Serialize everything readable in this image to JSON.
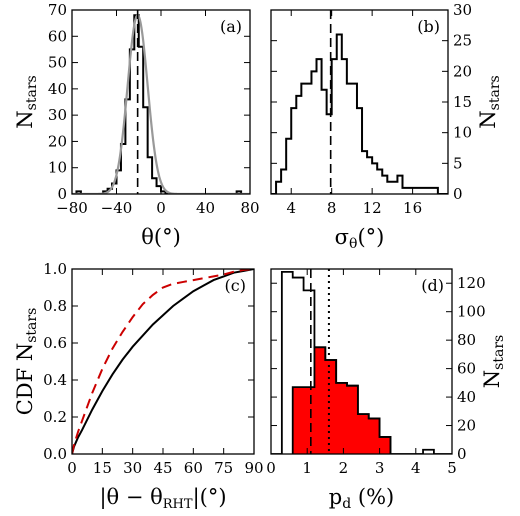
{
  "chart_data": [
    {
      "panel": "(a)",
      "type": "histogram",
      "xlabel": "θ(°)",
      "ylabel": "N_stars",
      "ylabel_side": "left",
      "xlim": [
        -80,
        80
      ],
      "ylim": [
        0,
        70
      ],
      "xticks": [
        -80,
        -40,
        0,
        40,
        80
      ],
      "yticks": [
        0,
        10,
        20,
        30,
        40,
        50,
        60,
        70
      ],
      "bin_edges": [
        -76,
        -72,
        -68,
        -64,
        -60,
        -56,
        -52,
        -48,
        -44,
        -40,
        -36,
        -32,
        -28,
        -24,
        -20,
        -16,
        -12,
        -8,
        -4,
        0,
        4,
        8,
        12,
        16,
        20,
        24,
        28,
        32,
        36,
        40,
        44,
        48,
        52,
        56,
        60,
        64,
        68,
        72,
        76
      ],
      "counts": [
        1,
        0,
        0,
        0,
        0,
        0,
        1,
        2,
        4,
        9,
        19,
        36,
        55,
        68,
        56,
        33,
        14,
        6,
        3,
        1,
        0,
        0,
        0,
        0,
        0,
        0,
        0,
        0,
        0,
        0,
        0,
        0,
        0,
        0,
        0,
        0,
        1,
        0
      ],
      "fit": {
        "type": "gaussian",
        "mean": -21,
        "sigma": 9,
        "amplitude": 68,
        "color": "#999999"
      },
      "median_line_x": -21
    },
    {
      "panel": "(b)",
      "type": "histogram",
      "xlabel": "σθ(°)",
      "ylabel": "N_stars",
      "ylabel_side": "right",
      "xlim": [
        2,
        19.5
      ],
      "ylim": [
        0,
        30
      ],
      "xticks": [
        4,
        8,
        12,
        16
      ],
      "yticks": [
        0,
        5,
        10,
        15,
        20,
        25,
        30
      ],
      "bin_edges": [
        2.0,
        2.5,
        3.0,
        3.5,
        4.0,
        4.5,
        5.0,
        5.5,
        6.0,
        6.5,
        7.0,
        7.5,
        8.0,
        8.5,
        9.0,
        9.5,
        10.0,
        10.5,
        11.0,
        11.5,
        12.0,
        12.5,
        13.0,
        13.5,
        14.0,
        14.5,
        15.0,
        15.5,
        16.0,
        16.5,
        17.0,
        17.5,
        18.0,
        18.5,
        19.0,
        19.5
      ],
      "counts": [
        0,
        2,
        4,
        9,
        14,
        16,
        18,
        18,
        20,
        22,
        17,
        13,
        22,
        26,
        22,
        18,
        18,
        14,
        7,
        6,
        5,
        4,
        3,
        2,
        2,
        3,
        1,
        1,
        1,
        1,
        1,
        1,
        1,
        0,
        0
      ],
      "median_line_x": 7.9
    },
    {
      "panel": "(c)",
      "type": "line",
      "xlabel": "|θ − θRHT|(°)",
      "ylabel": "CDF N_stars",
      "ylabel_side": "left",
      "xlim": [
        0,
        90
      ],
      "ylim": [
        0,
        1.0
      ],
      "xticks": [
        0,
        15,
        30,
        45,
        60,
        75,
        90
      ],
      "yticks": [
        0.0,
        0.2,
        0.4,
        0.6,
        0.8,
        1.0
      ],
      "series": [
        {
          "style": "solid",
          "color": "#000000",
          "x": [
            0,
            1,
            3,
            5,
            10,
            15,
            20,
            25,
            30,
            35,
            40,
            45,
            50,
            55,
            60,
            65,
            70,
            75,
            80,
            85,
            90
          ],
          "y": [
            0.0,
            0.04,
            0.09,
            0.13,
            0.24,
            0.34,
            0.43,
            0.51,
            0.58,
            0.64,
            0.7,
            0.75,
            0.8,
            0.84,
            0.88,
            0.91,
            0.94,
            0.96,
            0.98,
            0.99,
            1.0
          ]
        },
        {
          "style": "dashed",
          "color": "#cc0000",
          "x": [
            0,
            1,
            3,
            5,
            10,
            15,
            20,
            25,
            30,
            35,
            40,
            45,
            50,
            55,
            60,
            65,
            70,
            75,
            80,
            85,
            90
          ],
          "y": [
            0.0,
            0.05,
            0.12,
            0.18,
            0.33,
            0.46,
            0.57,
            0.66,
            0.74,
            0.81,
            0.86,
            0.9,
            0.92,
            0.93,
            0.94,
            0.95,
            0.96,
            0.97,
            0.985,
            0.995,
            1.0
          ]
        }
      ]
    },
    {
      "panel": "(d)",
      "type": "histogram",
      "xlabel": "pd (%)",
      "ylabel": "N_stars",
      "ylabel_side": "right",
      "xlim": [
        0,
        5
      ],
      "ylim": [
        0,
        130
      ],
      "xticks": [
        0,
        1,
        2,
        3,
        4,
        5
      ],
      "yticks": [
        0,
        20,
        40,
        60,
        80,
        100,
        120
      ],
      "series": [
        {
          "style": "outline",
          "color": "#000000",
          "bin_edges": [
            0.0,
            0.3,
            0.6,
            0.9,
            1.2,
            1.5,
            1.8,
            2.1,
            2.4,
            2.7,
            3.0,
            3.3,
            3.6,
            3.9,
            4.2,
            4.5,
            4.8,
            5.0
          ],
          "counts": [
            0,
            128,
            124,
            115,
            75,
            66,
            50,
            48,
            28,
            25,
            12,
            0,
            0,
            0,
            3,
            0,
            0
          ]
        },
        {
          "style": "filled",
          "color": "#ff0000",
          "bin_edges": [
            0.6,
            0.9,
            1.2,
            1.5,
            1.8,
            2.1,
            2.4,
            2.7,
            3.0,
            3.3
          ],
          "counts": [
            47,
            47,
            75,
            66,
            50,
            48,
            28,
            25,
            12
          ]
        }
      ],
      "vlines": [
        {
          "x": 1.1,
          "style": "dashed"
        },
        {
          "x": 1.6,
          "style": "dotted"
        }
      ]
    }
  ]
}
